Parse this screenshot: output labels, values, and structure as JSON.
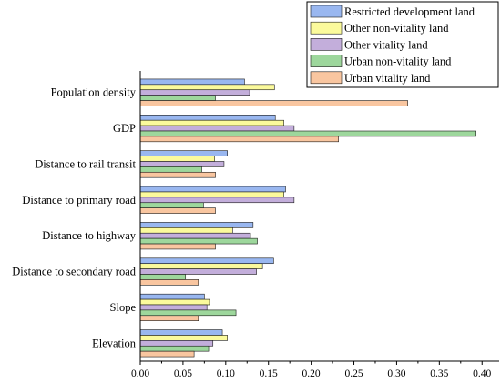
{
  "chart_data": {
    "type": "bar",
    "orientation": "horizontal",
    "categories": [
      "Population density",
      "GDP",
      "Distance to rail transit",
      "Distance to primary road",
      "Distance to highway",
      "Distance to secondary road",
      "Slope",
      "Elevation"
    ],
    "series": [
      {
        "name": "Restricted development land",
        "color": "#99b7f0",
        "values": [
          0.122,
          0.158,
          0.102,
          0.17,
          0.132,
          0.156,
          0.075,
          0.096
        ]
      },
      {
        "name": "Other non-vitality land",
        "color": "#fbfa9c",
        "values": [
          0.157,
          0.168,
          0.087,
          0.168,
          0.108,
          0.143,
          0.081,
          0.102
        ]
      },
      {
        "name": "Other vitality land",
        "color": "#c3aedb",
        "values": [
          0.128,
          0.18,
          0.098,
          0.18,
          0.129,
          0.136,
          0.078,
          0.085
        ]
      },
      {
        "name": "Urban non-vitality land",
        "color": "#9dd79c",
        "values": [
          0.088,
          0.393,
          0.072,
          0.074,
          0.137,
          0.053,
          0.112,
          0.08
        ]
      },
      {
        "name": "Urban vitality land",
        "color": "#f9c6a0",
        "values": [
          0.313,
          0.232,
          0.088,
          0.088,
          0.088,
          0.068,
          0.068,
          0.063
        ]
      }
    ],
    "xlim": [
      0,
      0.42
    ],
    "xticks": [
      "0.00",
      "0.05",
      "0.10",
      "0.15",
      "0.20",
      "0.25",
      "0.30",
      "0.35",
      "0.40"
    ],
    "xlabel": "",
    "ylabel": "",
    "title": "",
    "grid": false,
    "legend_position": "top-right"
  }
}
